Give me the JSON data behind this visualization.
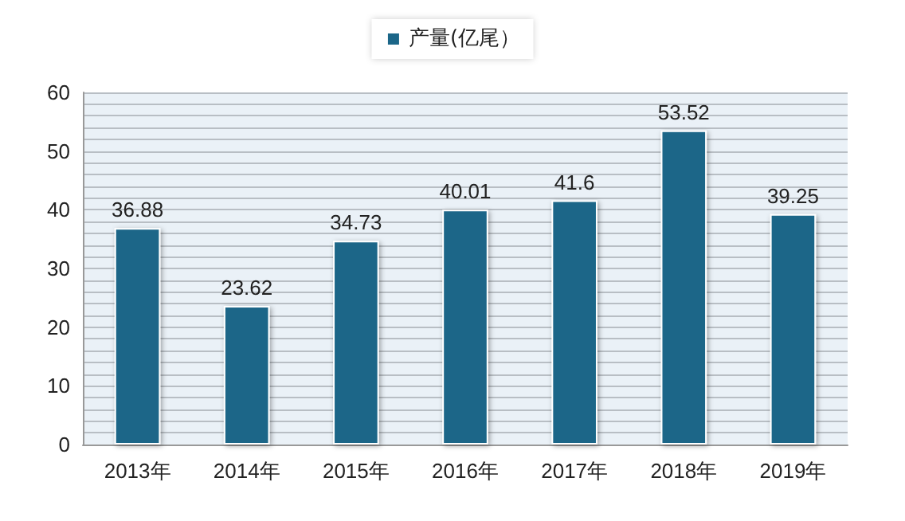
{
  "chart_data": {
    "type": "bar",
    "categories": [
      "2013年",
      "2014年",
      "2015年",
      "2016年",
      "2017年",
      "2018年",
      "2019年"
    ],
    "series": [
      {
        "name": "产量(亿尾）",
        "color": "#1b6688",
        "values": [
          36.88,
          23.62,
          34.73,
          40.01,
          41.6,
          53.52,
          39.25
        ]
      }
    ],
    "ylim": [
      0,
      60
    ],
    "yticks": [
      0,
      {
        "value": 2,
        "label": null
      },
      {
        "value": 4,
        "label": null
      },
      {
        "value": 6,
        "label": null
      },
      {
        "value": 8,
        "label": null
      },
      10,
      {
        "value": 12,
        "label": null
      },
      {
        "value": 14,
        "label": null
      },
      {
        "value": 16,
        "label": null
      },
      {
        "value": 18,
        "label": null
      },
      20,
      {
        "value": 22,
        "label": null
      },
      {
        "value": 24,
        "label": null
      },
      {
        "value": 26,
        "label": null
      },
      {
        "value": 28,
        "label": null
      },
      30,
      {
        "value": 32,
        "label": null
      },
      {
        "value": 34,
        "label": null
      },
      {
        "value": 36,
        "label": null
      },
      {
        "value": 38,
        "label": null
      },
      40,
      {
        "value": 42,
        "label": null
      },
      {
        "value": 44,
        "label": null
      },
      {
        "value": 46,
        "label": null
      },
      {
        "value": 48,
        "label": null
      },
      50,
      {
        "value": 52,
        "label": null
      },
      {
        "value": 54,
        "label": null
      },
      {
        "value": 56,
        "label": null
      },
      {
        "value": 58,
        "label": null
      },
      60
    ],
    "grid": true,
    "legend": "top",
    "data_labels": true
  }
}
